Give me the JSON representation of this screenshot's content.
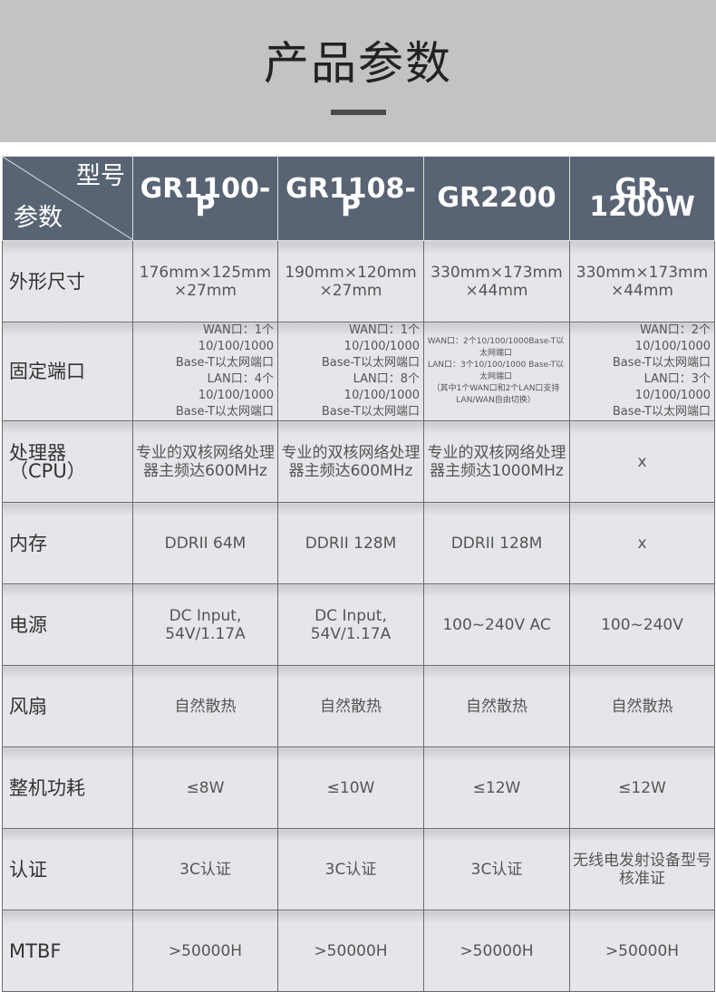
{
  "title": "产品参数",
  "header": {
    "corner_top": "型号",
    "corner_bottom": "参数",
    "models": [
      "GR1100-P",
      "GR1108-P",
      "GR2200",
      "GR-1200W"
    ]
  },
  "rows": [
    {
      "label": "外形尺寸",
      "cells": [
        "176mm×125mm ×27mm",
        "190mm×120mm ×27mm",
        "330mm×173mm ×44mm",
        "330mm×173mm ×44mm"
      ]
    },
    {
      "label": "固定端口",
      "cells": [
        [
          "WAN口：1个10/100/1000",
          "Base-T以太网端口",
          "LAN口：4个10/100/1000",
          "Base-T以太网端口"
        ],
        [
          "WAN口：1个10/100/1000",
          "Base-T以太网端口",
          "LAN口：8个10/100/1000",
          "Base-T以太网端口"
        ],
        [
          "WAN口：2个10/100/1000Base-T以",
          "太网端口",
          "LAN口：3个10/100/1000 Base-T以",
          "太网端口",
          "（其中1个WAN口和2个LAN口支持",
          "LAN/WAN自由切换）"
        ],
        [
          "WAN口：2个10/100/1000",
          "Base-T以太网端口",
          "LAN口：3个10/100/1000",
          "Base-T以太网端口"
        ]
      ]
    },
    {
      "label": "处理器（CPU）",
      "cells": [
        "专业的双核网络处理器主频达600MHz",
        "专业的双核网络处理器主频达600MHz",
        "专业的双核网络处理器主频达1000MHz",
        "x"
      ]
    },
    {
      "label": "内存",
      "cells": [
        "DDRII 64M",
        "DDRII 128M",
        "DDRII 128M",
        "x"
      ]
    },
    {
      "label": "电源",
      "cells": [
        "DC Input, 54V/1.17A",
        "DC Input, 54V/1.17A",
        "100~240V AC",
        "100~240V"
      ]
    },
    {
      "label": "风扇",
      "cells": [
        "自然散热",
        "自然散热",
        "自然散热",
        "自然散热"
      ]
    },
    {
      "label": "整机功耗",
      "cells": [
        "≤8W",
        "≤10W",
        "≤12W",
        "≤12W"
      ]
    },
    {
      "label": "认证",
      "cells": [
        "3C认证",
        "3C认证",
        "3C认证",
        "无线电发射设备型号核准证"
      ]
    },
    {
      "label": "MTBF",
      "cells": [
        ">50000H",
        ">50000H",
        ">50000H",
        ">50000H"
      ]
    }
  ]
}
